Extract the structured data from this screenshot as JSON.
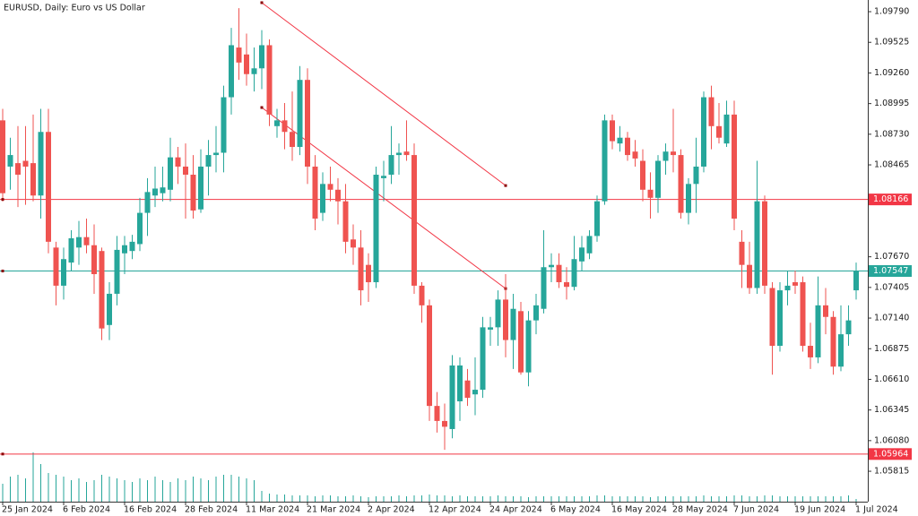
{
  "chart_data": {
    "type": "candlestick",
    "title": "EURUSD, Daily:  Euro vs US Dollar",
    "categories": [
      "25 Jan 2024",
      null,
      null,
      null,
      null,
      null,
      null,
      null,
      "6 Feb 2024",
      null,
      null,
      null,
      null,
      null,
      null,
      null,
      "16 Feb 2024",
      null,
      null,
      null,
      null,
      null,
      null,
      null,
      "28 Feb 2024",
      null,
      null,
      null,
      null,
      null,
      null,
      null,
      "11 Mar 2024",
      null,
      null,
      null,
      null,
      null,
      null,
      null,
      "21 Mar 2024",
      null,
      null,
      null,
      null,
      null,
      null,
      null,
      "2 Apr 2024",
      null,
      null,
      null,
      null,
      null,
      null,
      null,
      "12 Apr 2024",
      null,
      null,
      null,
      null,
      null,
      null,
      null,
      "24 Apr 2024",
      null,
      null,
      null,
      null,
      null,
      null,
      null,
      "6 May 2024",
      null,
      null,
      null,
      null,
      null,
      null,
      null,
      "16 May 2024",
      null,
      null,
      null,
      null,
      null,
      null,
      null,
      "28 May 2024",
      null,
      null,
      null,
      null,
      null,
      null,
      null,
      "7 Jun 2024",
      null,
      null,
      null,
      null,
      null,
      null,
      null,
      "19 Jun 2024",
      null,
      null,
      null,
      null,
      null,
      null,
      null,
      "1 Jul 2024"
    ],
    "open": [
      1.0885,
      1.0845,
      1.0848,
      1.085,
      1.0848,
      1.082,
      1.0875,
      1.0775,
      1.0742,
      1.0762,
      1.0775,
      1.0784,
      1.0777,
      1.0772,
      1.0708,
      1.0735,
      1.077,
      1.0772,
      1.0778,
      1.0805,
      1.082,
      1.0822,
      1.0825,
      1.0853,
      1.0845,
      1.0838,
      1.0808,
      1.0845,
      1.0855,
      1.0857,
      1.0905,
      1.0948,
      1.0942,
      1.0925,
      1.093,
      1.095,
      1.088,
      1.0885,
      1.0875,
      1.0862,
      1.092,
      1.0845,
      1.0805,
      1.083,
      1.0825,
      1.0815,
      1.0782,
      1.0775,
      1.076,
      1.0745,
      1.0835,
      1.0838,
      1.0855,
      1.0858,
      1.0855,
      1.0742,
      1.0725,
      1.0638,
      1.0625,
      1.0618,
      1.0642,
      1.066,
      1.0648,
      1.0652,
      1.0704,
      1.0706,
      1.073,
      1.0695,
      1.072,
      1.0667,
      1.0712,
      1.0722,
      1.0758,
      1.076,
      1.0745,
      1.0741,
      1.0763,
      1.077,
      1.0785,
      1.0815,
      1.0885,
      1.0865,
      1.087,
      1.0858,
      1.085,
      1.0825,
      1.0818,
      1.085,
      1.0858,
      1.0855,
      1.0805,
      1.083,
      1.0845,
      1.0905,
      1.088,
      1.0865,
      1.089,
      1.078,
      1.076,
      1.074,
      1.0815,
      1.074,
      1.069,
      1.0738,
      1.0745,
      1.0745,
      1.069,
      1.068,
      1.0725,
      1.0715,
      1.0672,
      1.07,
      1.0738
    ],
    "high": [
      1.0895,
      1.087,
      1.088,
      1.088,
      1.089,
      1.0895,
      1.0895,
      1.078,
      1.0775,
      1.079,
      1.0798,
      1.08,
      1.0795,
      1.0775,
      1.0745,
      1.0785,
      1.0785,
      1.0786,
      1.0818,
      1.0835,
      1.0845,
      1.0845,
      1.087,
      1.0862,
      1.0865,
      1.0855,
      1.086,
      1.0868,
      1.088,
      1.0915,
      1.0965,
      1.0982,
      1.096,
      1.0948,
      1.0963,
      1.0955,
      1.0895,
      1.09,
      1.091,
      1.0932,
      1.093,
      1.0855,
      1.084,
      1.0845,
      1.0835,
      1.083,
      1.0795,
      1.079,
      1.077,
      1.0845,
      1.085,
      1.088,
      1.0865,
      1.0885,
      1.0865,
      1.0745,
      1.073,
      1.065,
      1.064,
      1.0682,
      1.068,
      1.067,
      1.068,
      1.0715,
      1.0715,
      1.0738,
      1.0752,
      1.0735,
      1.0728,
      1.072,
      1.0735,
      1.079,
      1.077,
      1.077,
      1.0758,
      1.0785,
      1.0785,
      1.079,
      1.082,
      1.089,
      1.089,
      1.088,
      1.0875,
      1.0868,
      1.086,
      1.084,
      1.0855,
      1.0865,
      1.0895,
      1.086,
      1.0835,
      1.087,
      1.091,
      1.0915,
      1.09,
      1.0902,
      1.0902,
      1.079,
      1.078,
      1.085,
      1.082,
      1.0745,
      1.0745,
      1.0755,
      1.0755,
      1.075,
      1.071,
      1.075,
      1.074,
      1.072,
      1.0725,
      1.0725,
      1.0762
    ],
    "low": [
      1.0815,
      1.0825,
      1.081,
      1.0812,
      1.0815,
      1.08,
      1.077,
      1.0725,
      1.073,
      1.0755,
      1.076,
      1.077,
      1.0735,
      1.0695,
      1.0695,
      1.0725,
      1.0752,
      1.0765,
      1.0772,
      1.0785,
      1.081,
      1.0815,
      1.0815,
      1.083,
      1.08,
      1.08,
      1.0805,
      1.082,
      1.084,
      1.084,
      1.089,
      1.092,
      1.0915,
      1.091,
      1.0912,
      1.088,
      1.087,
      1.086,
      1.085,
      1.0855,
      1.083,
      1.079,
      1.0798,
      1.0815,
      1.0795,
      1.077,
      1.076,
      1.0725,
      1.0728,
      1.074,
      1.0815,
      1.083,
      1.0838,
      1.085,
      1.0735,
      1.071,
      1.0625,
      1.0615,
      1.06,
      1.061,
      1.0625,
      1.0638,
      1.063,
      1.0645,
      1.069,
      1.069,
      1.068,
      1.067,
      1.0665,
      1.0655,
      1.07,
      1.0718,
      1.0745,
      1.074,
      1.073,
      1.0738,
      1.0755,
      1.0765,
      1.078,
      1.0812,
      1.086,
      1.0858,
      1.085,
      1.0845,
      1.0815,
      1.08,
      1.0805,
      1.0838,
      1.084,
      1.08,
      1.0795,
      1.0805,
      1.084,
      1.086,
      1.0865,
      1.0862,
      1.079,
      1.074,
      1.0735,
      1.0735,
      1.0735,
      1.0665,
      1.0685,
      1.0725,
      1.0735,
      1.0685,
      1.067,
      1.0675,
      1.07,
      1.0665,
      1.0668,
      1.069,
      1.073
    ],
    "close": [
      1.0822,
      1.0855,
      1.0838,
      1.0845,
      1.082,
      1.0875,
      1.078,
      1.0742,
      1.0765,
      1.0783,
      1.0784,
      1.0777,
      1.0752,
      1.0705,
      1.0735,
      1.0773,
      1.0777,
      1.078,
      1.0805,
      1.0823,
      1.0826,
      1.0827,
      1.0853,
      1.0845,
      1.0838,
      1.0807,
      1.0845,
      1.0855,
      1.0857,
      1.0905,
      1.095,
      1.0935,
      1.0925,
      1.093,
      1.095,
      1.089,
      1.0885,
      1.0875,
      1.0862,
      1.092,
      1.0845,
      1.08,
      1.083,
      1.0825,
      1.0815,
      1.078,
      1.0775,
      1.0738,
      1.0745,
      1.0838,
      1.0837,
      1.0855,
      1.0857,
      1.0855,
      1.0742,
      1.0725,
      1.0638,
      1.0625,
      1.062,
      1.0673,
      1.0673,
      1.0645,
      1.0652,
      1.0706,
      1.0706,
      1.073,
      1.0695,
      1.0722,
      1.0667,
      1.0712,
      1.0725,
      1.0758,
      1.076,
      1.0745,
      1.0741,
      1.0765,
      1.0775,
      1.0785,
      1.0815,
      1.0885,
      1.0867,
      1.087,
      1.0855,
      1.0852,
      1.0825,
      1.0818,
      1.085,
      1.0858,
      1.0855,
      1.0805,
      1.083,
      1.0845,
      1.0905,
      1.088,
      1.087,
      1.089,
      1.08,
      1.076,
      1.074,
      1.0815,
      1.0742,
      1.069,
      1.0738,
      1.0742,
      1.0742,
      1.069,
      1.068,
      1.0725,
      1.0715,
      1.0672,
      1.07,
      1.0712,
      1.0755
    ],
    "volume": [
      20,
      28,
      30,
      26,
      55,
      42,
      32,
      30,
      28,
      24,
      26,
      22,
      24,
      30,
      28,
      26,
      24,
      22,
      26,
      24,
      28,
      24,
      22,
      26,
      24,
      28,
      26,
      24,
      28,
      30,
      30,
      28,
      26,
      24,
      12,
      9,
      8,
      8,
      7,
      7,
      7,
      6,
      7,
      7,
      6,
      6,
      7,
      6,
      5,
      6,
      6,
      6,
      7,
      6,
      7,
      7,
      8,
      7,
      7,
      6,
      7,
      6,
      6,
      6,
      6,
      7,
      6,
      6,
      6,
      5,
      6,
      6,
      6,
      6,
      6,
      6,
      6,
      6,
      7,
      7,
      6,
      6,
      6,
      6,
      6,
      5,
      6,
      6,
      6,
      6,
      6,
      6,
      7,
      6,
      6,
      6,
      7,
      7,
      6,
      6,
      7,
      7,
      6,
      6,
      6,
      6,
      6,
      6,
      6,
      6,
      6,
      7,
      3
    ],
    "up_color": "#26a69a",
    "down_color": "#ef5350",
    "ylim": [
      1.05552,
      1.09891
    ],
    "yticks": [
      {
        "value": 1.0979,
        "label": "1.09790"
      },
      1.09525,
      {
        "value": 1.0926,
        "label": "1.09260"
      },
      1.08995,
      {
        "value": 1.0873,
        "label": "1.08730"
      },
      1.08465,
      {
        "value": 1.0767,
        "label": "1.07670"
      },
      1.07405,
      {
        "value": 1.0714,
        "label": "1.07140"
      },
      1.06875,
      {
        "value": 1.0661,
        "label": "1.06610"
      },
      1.06345,
      {
        "value": 1.0608,
        "label": "1.06080"
      },
      1.05815
    ],
    "hlines": [
      {
        "value": 1.08166,
        "color": "#f23645"
      },
      {
        "value": 1.07547,
        "color": "#26a69a"
      },
      {
        "value": 1.05964,
        "color": "#f23645"
      }
    ],
    "trendlines": [
      {
        "start": [
          34,
          1.09868
        ],
        "end": [
          66,
          1.08286
        ],
        "color": "#f23645"
      },
      {
        "start": [
          34,
          1.08961
        ],
        "end": [
          66,
          1.07395
        ],
        "color": "#f23645"
      }
    ]
  }
}
